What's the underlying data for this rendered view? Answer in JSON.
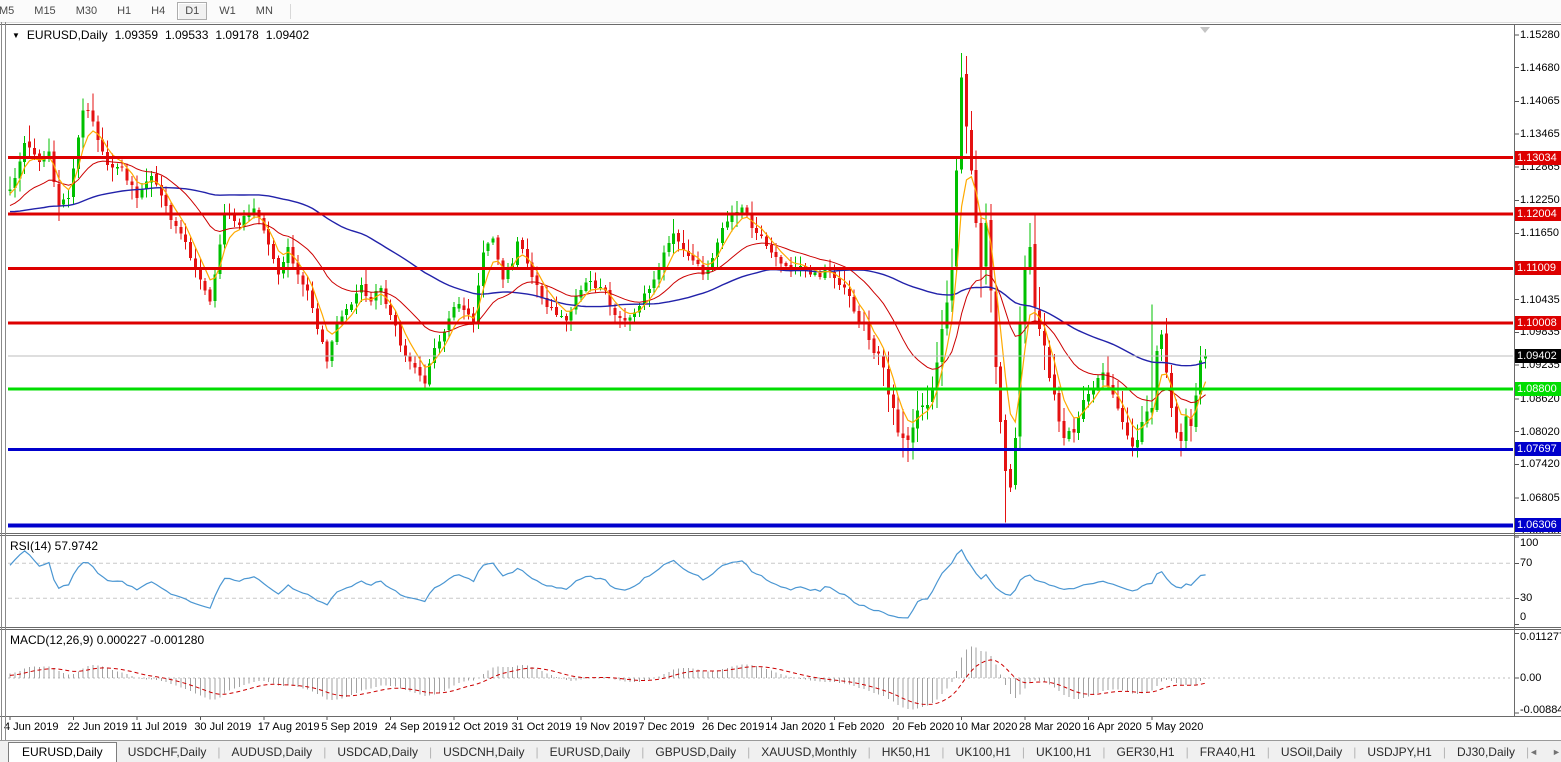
{
  "icons": {
    "dropdown": "▼"
  },
  "toolbar": {
    "timeframes": [
      {
        "label": "M5",
        "selected": false
      },
      {
        "label": "M15",
        "selected": false
      },
      {
        "label": "M30",
        "selected": false
      },
      {
        "label": "H1",
        "selected": false
      },
      {
        "label": "H4",
        "selected": false
      },
      {
        "label": "D1",
        "selected": true
      },
      {
        "label": "W1",
        "selected": false
      },
      {
        "label": "MN",
        "selected": false
      }
    ]
  },
  "chart": {
    "title": {
      "symbol": "EURUSD,Daily",
      "open": "1.09359",
      "high": "1.09533",
      "low": "1.09178",
      "close": "1.09402"
    },
    "axis_ticks": [
      {
        "label": "1.15280",
        "value": 1.1528
      },
      {
        "label": "1.14680",
        "value": 1.1468
      },
      {
        "label": "1.14065",
        "value": 1.14065
      },
      {
        "label": "1.13465",
        "value": 1.13465
      },
      {
        "label": "1.12865",
        "value": 1.12865
      },
      {
        "label": "1.12250",
        "value": 1.1225
      },
      {
        "label": "1.11650",
        "value": 1.1165
      },
      {
        "label": "1.10435",
        "value": 1.10435
      },
      {
        "label": "1.09835",
        "value": 1.09835
      },
      {
        "label": "1.09235",
        "value": 1.09235
      },
      {
        "label": "1.08620",
        "value": 1.0862
      },
      {
        "label": "1.08020",
        "value": 1.0802
      },
      {
        "label": "1.07420",
        "value": 1.0742
      },
      {
        "label": "1.06805",
        "value": 1.06805
      },
      {
        "label": "1.06205",
        "value": 1.06205
      }
    ],
    "levels": [
      {
        "label": "1.13034",
        "value": 1.13034,
        "color": "#dd0000",
        "width": 3
      },
      {
        "label": "1.12004",
        "value": 1.12004,
        "color": "#dd0000",
        "width": 3
      },
      {
        "label": "1.11009",
        "value": 1.11009,
        "color": "#dd0000",
        "width": 3
      },
      {
        "label": "1.10008",
        "value": 1.10008,
        "color": "#dd0000",
        "width": 3
      },
      {
        "label": "1.08800",
        "value": 1.088,
        "color": "#00dd00",
        "width": 3
      },
      {
        "label": "1.07697",
        "value": 1.07697,
        "color": "#0000cc",
        "width": 3
      },
      {
        "label": "1.06306",
        "value": 1.06306,
        "color": "#0000cc",
        "width": 4
      }
    ],
    "current_price": {
      "label": "1.09402",
      "value": 1.09402,
      "bg": "#000000",
      "line_color": "#bdbdbd"
    }
  },
  "chart_data": {
    "type": "candlestick",
    "symbol": "EURUSD",
    "timeframe": "Daily",
    "num_candles": 246,
    "price_axis_range": [
      1.0618,
      1.1546
    ],
    "x_labels": [
      "4 Jun 2019",
      "22 Jun 2019",
      "11 Jul 2019",
      "30 Jul 2019",
      "17 Aug 2019",
      "5 Sep 2019",
      "24 Sep 2019",
      "12 Oct 2019",
      "31 Oct 2019",
      "19 Nov 2019",
      "7 Dec 2019",
      "26 Dec 2019",
      "14 Jan 2020",
      "1 Feb 2020",
      "20 Feb 2020",
      "10 Mar 2020",
      "28 Mar 2020",
      "16 Apr 2020",
      "5 May 2020"
    ],
    "x_label_day_step": 13,
    "close_anchors": [
      [
        -80,
        1.121
      ],
      [
        -60,
        1.1265
      ],
      [
        -45,
        1.117
      ],
      [
        -30,
        1.1215
      ],
      [
        -15,
        1.118
      ],
      [
        0,
        1.1245
      ],
      [
        3,
        1.133
      ],
      [
        6,
        1.1295
      ],
      [
        8,
        1.1315
      ],
      [
        10,
        1.1215
      ],
      [
        12,
        1.123
      ],
      [
        15,
        1.139
      ],
      [
        17,
        1.137
      ],
      [
        20,
        1.129
      ],
      [
        23,
        1.1285
      ],
      [
        26,
        1.123
      ],
      [
        29,
        1.127
      ],
      [
        32,
        1.1215
      ],
      [
        35,
        1.1165
      ],
      [
        37,
        1.112
      ],
      [
        40,
        1.106
      ],
      [
        41,
        1.104
      ],
      [
        42,
        1.109
      ],
      [
        44,
        1.12
      ],
      [
        47,
        1.118
      ],
      [
        50,
        1.121
      ],
      [
        52,
        1.117
      ],
      [
        55,
        1.109
      ],
      [
        57,
        1.114
      ],
      [
        59,
        1.109
      ],
      [
        61,
        1.106
      ],
      [
        63,
        1.099
      ],
      [
        65,
        1.093
      ],
      [
        67,
        1.1
      ],
      [
        70,
        1.1035
      ],
      [
        72,
        1.107
      ],
      [
        74,
        1.104
      ],
      [
        76,
        1.1065
      ],
      [
        78,
        1.1015
      ],
      [
        80,
        1.096
      ],
      [
        82,
        1.093
      ],
      [
        84,
        1.0905
      ],
      [
        85,
        1.089
      ],
      [
        87,
        1.0955
      ],
      [
        89,
        1.0985
      ],
      [
        91,
        1.103
      ],
      [
        93,
        1.1025
      ],
      [
        95,
        1.1
      ],
      [
        97,
        1.113
      ],
      [
        99,
        1.1155
      ],
      [
        101,
        1.108
      ],
      [
        103,
        1.111
      ],
      [
        104,
        1.115
      ],
      [
        106,
        1.111
      ],
      [
        108,
        1.107
      ],
      [
        110,
        1.103
      ],
      [
        112,
        1.1015
      ],
      [
        114,
        1.1005
      ],
      [
        116,
        1.105
      ],
      [
        118,
        1.1075
      ],
      [
        120,
        1.1065
      ],
      [
        122,
        1.106
      ],
      [
        124,
        1.1015
      ],
      [
        126,
        1.1005
      ],
      [
        128,
        1.102
      ],
      [
        130,
        1.1055
      ],
      [
        132,
        1.108
      ],
      [
        134,
        1.113
      ],
      [
        136,
        1.1165
      ],
      [
        138,
        1.1135
      ],
      [
        140,
        1.1115
      ],
      [
        142,
        1.109
      ],
      [
        144,
        1.112
      ],
      [
        146,
        1.1175
      ],
      [
        148,
        1.12
      ],
      [
        150,
        1.1212
      ],
      [
        152,
        1.1175
      ],
      [
        154,
        1.116
      ],
      [
        156,
        1.113
      ],
      [
        158,
        1.111
      ],
      [
        160,
        1.1095
      ],
      [
        162,
        1.1105
      ],
      [
        164,
        1.109
      ],
      [
        166,
        1.1085
      ],
      [
        168,
        1.1095
      ],
      [
        170,
        1.107
      ],
      [
        172,
        1.105
      ],
      [
        174,
        1.1
      ],
      [
        176,
        1.097
      ],
      [
        178,
        1.0945
      ],
      [
        180,
        1.087
      ],
      [
        182,
        1.08
      ],
      [
        183,
        1.079
      ],
      [
        185,
        1.081
      ],
      [
        187,
        1.085
      ],
      [
        189,
        1.088
      ],
      [
        191,
        1.099
      ],
      [
        193,
        1.11
      ],
      [
        194,
        1.128
      ],
      [
        195,
        1.145
      ],
      [
        196,
        1.136
      ],
      [
        197,
        1.128
      ],
      [
        198,
        1.1184
      ],
      [
        199,
        1.11
      ],
      [
        200,
        1.1184
      ],
      [
        201,
        1.106
      ],
      [
        202,
        1.092
      ],
      [
        203,
        1.082
      ],
      [
        204,
        1.073
      ],
      [
        205,
        1.07
      ],
      [
        206,
        1.079
      ],
      [
        207,
        1.1
      ],
      [
        208,
        1.11
      ],
      [
        209,
        1.114
      ],
      [
        210,
        1.103
      ],
      [
        211,
        1.099
      ],
      [
        212,
        1.096
      ],
      [
        213,
        1.09
      ],
      [
        214,
        1.087
      ],
      [
        216,
        1.079
      ],
      [
        218,
        1.08
      ],
      [
        220,
        1.086
      ],
      [
        222,
        1.088
      ],
      [
        224,
        1.091
      ],
      [
        226,
        1.087
      ],
      [
        228,
        1.082
      ],
      [
        230,
        1.0775
      ],
      [
        232,
        1.082
      ],
      [
        234,
        1.0845
      ],
      [
        235,
        1.095
      ],
      [
        236,
        1.098
      ],
      [
        237,
        1.091
      ],
      [
        238,
        1.0845
      ],
      [
        239,
        1.08
      ],
      [
        240,
        1.0785
      ],
      [
        241,
        1.083
      ],
      [
        242,
        1.0812
      ],
      [
        243,
        1.0868
      ],
      [
        244,
        1.0932
      ],
      [
        245,
        1.094
      ]
    ],
    "wick_overrides": {
      "15": {
        "high": 1.1412
      },
      "85": {
        "low": 1.0879
      },
      "195": {
        "high": 1.1495
      },
      "204": {
        "low": 1.0636
      },
      "234": {
        "high": 1.1035
      }
    },
    "last_candle": {
      "open": 1.09359,
      "high": 1.09533,
      "low": 1.09178,
      "close": 1.09402
    },
    "support_resistance_levels": [
      1.13034,
      1.12004,
      1.11009,
      1.10008,
      1.088,
      1.07697,
      1.06306
    ],
    "moving_average_periods": {
      "fast": 5,
      "mid": 22,
      "slow": 60
    },
    "colors": {
      "up": "#00c000",
      "down": "#e41212",
      "ma_fast": "#ffaa00",
      "ma_mid": "#cc0000",
      "ma_slow": "#2222aa",
      "rsi": "#4a96d2",
      "rsi_levels": "#c8c8c8",
      "macd_histogram": "#a3a3a3",
      "macd_signal": "#cc0000",
      "level_red": "#dd0000",
      "level_green": "#00dd00",
      "level_blue": "#0000cc"
    }
  },
  "rsi": {
    "label": "RSI(14) 57.9742",
    "indicator": "RSI",
    "period": 14,
    "value": "57.9742",
    "axis_ticks": [
      {
        "label": "100",
        "value": 100
      },
      {
        "label": "70",
        "value": 70
      },
      {
        "label": "30",
        "value": 30
      },
      {
        "label": "0",
        "value": 0
      }
    ]
  },
  "macd": {
    "label": "MACD(12,26,9) 0.000227 -0.001280",
    "values": [
      "0.000227",
      "-0.001280"
    ],
    "axis_ticks": [
      {
        "label": "0.011277",
        "value": 0.011277
      },
      {
        "label": "0.00",
        "value": 0
      },
      {
        "label": "-0.00884",
        "value": -0.00884
      }
    ]
  },
  "tabs": {
    "active_index": 0,
    "separator": "|",
    "scroll_left_icon": "◄",
    "scroll_right_icon": "►",
    "items": [
      {
        "label": "EURUSD,Daily"
      },
      {
        "label": "USDCHF,Daily"
      },
      {
        "label": "AUDUSD,Daily"
      },
      {
        "label": "USDCAD,Daily"
      },
      {
        "label": "USDCNH,Daily"
      },
      {
        "label": "EURUSD,Daily"
      },
      {
        "label": "GBPUSD,Daily"
      },
      {
        "label": "XAUUSD,Monthly"
      },
      {
        "label": "HK50,H1"
      },
      {
        "label": "UK100,H1"
      },
      {
        "label": "UK100,H1"
      },
      {
        "label": "GER30,H1"
      },
      {
        "label": "FRA40,H1"
      },
      {
        "label": "USOil,Daily"
      },
      {
        "label": "USDJPY,H1"
      },
      {
        "label": "DJ30,Daily"
      }
    ]
  }
}
